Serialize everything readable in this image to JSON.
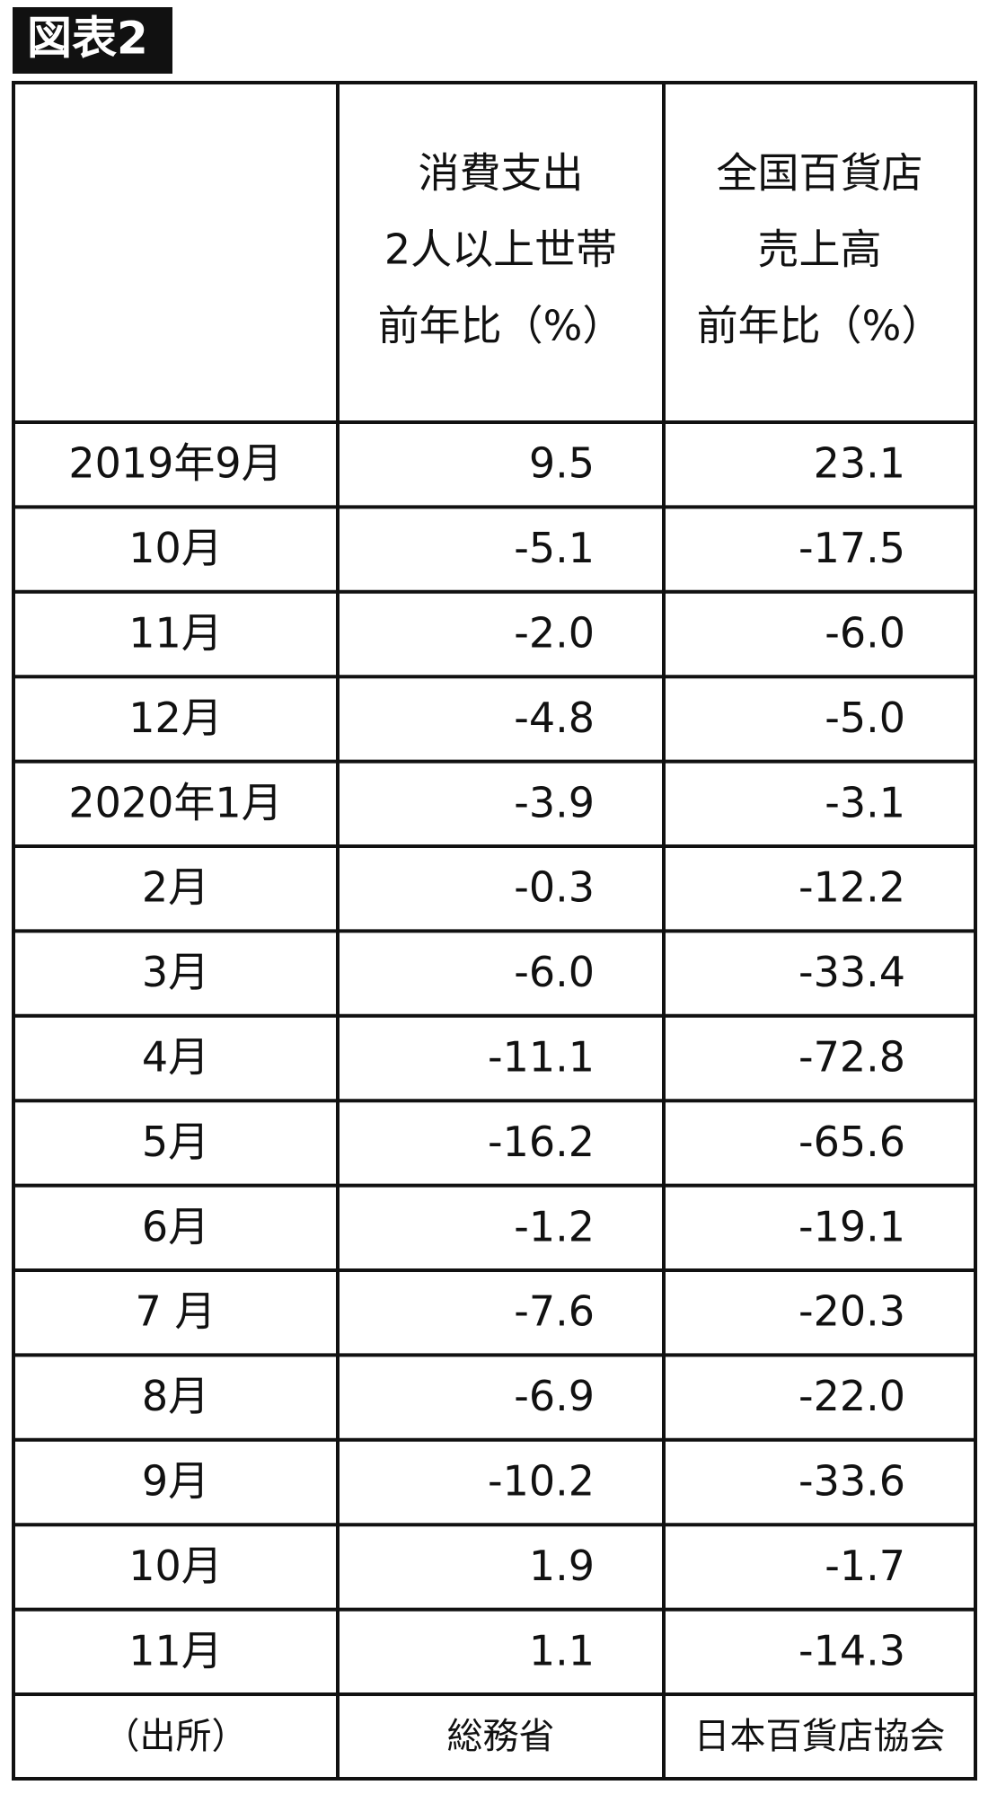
{
  "title": "図表2",
  "table": {
    "header": [
      [
        "消費支出",
        "2人以上世帯",
        "前年比（%）"
      ],
      [
        "全国百貨店",
        "売上高",
        "前年比（%）"
      ]
    ],
    "rows": [
      [
        "2019年9月",
        "9.5",
        "23.1"
      ],
      [
        "10月",
        "-5.1",
        "-17.5"
      ],
      [
        "11月",
        "-2.0",
        "-6.0"
      ],
      [
        "12月",
        "-4.8",
        "-5.0"
      ],
      [
        "2020年1月",
        "-3.9",
        "-3.1"
      ],
      [
        "2月",
        "-0.3",
        "-12.2"
      ],
      [
        "3月",
        "-6.0",
        "-33.4"
      ],
      [
        "4月",
        "-11.1",
        "-72.8"
      ],
      [
        "5月",
        "-16.2",
        "-65.6"
      ],
      [
        "6月",
        "-1.2",
        "-19.1"
      ],
      [
        "7 月",
        "-7.6",
        "-20.3"
      ],
      [
        "8月",
        "-6.9",
        "-22.0"
      ],
      [
        "9月",
        "-10.2",
        "-33.6"
      ],
      [
        "10月",
        "1.9",
        "-1.7"
      ],
      [
        "11月",
        "1.1",
        "-14.3"
      ]
    ],
    "source": [
      "（出所）",
      "総務省",
      "日本百貨店協会"
    ]
  }
}
